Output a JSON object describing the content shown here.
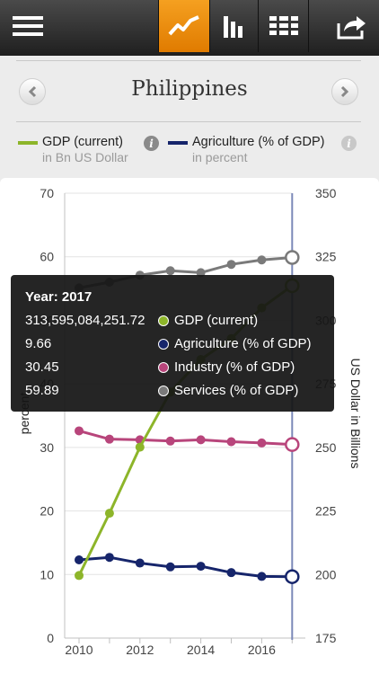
{
  "toolbar": {
    "buttons": [
      {
        "name": "menu",
        "icon": "hamburger-icon",
        "active": false
      },
      {
        "name": "line-chart",
        "icon": "line-chart-icon",
        "active": true
      },
      {
        "name": "bar-chart",
        "icon": "bar-chart-icon",
        "active": false
      },
      {
        "name": "table",
        "icon": "table-grid-icon",
        "active": false
      },
      {
        "name": "share",
        "icon": "share-icon",
        "active": false
      }
    ],
    "active_color": "#f39a16"
  },
  "header": {
    "title": "Philippines",
    "prev_icon": "chevron-left-icon",
    "next_icon": "chevron-right-icon"
  },
  "legend": [
    {
      "label": "GDP (current)",
      "sub": "in Bn US Dollar",
      "color": "#8db52a",
      "info_icon": "info-icon"
    },
    {
      "label": "Agriculture (% of GDP)",
      "sub": "in percent",
      "color": "#16256b",
      "info_icon": "info-icon"
    }
  ],
  "chart_data": {
    "type": "line",
    "x": [
      2010,
      2011,
      2012,
      2013,
      2014,
      2015,
      2016,
      2017
    ],
    "x_ticks": [
      "2010",
      "2012",
      "2014",
      "2016"
    ],
    "left_axis": {
      "label": "percent",
      "ticks": [
        "0",
        "10",
        "20",
        "30",
        "40",
        "50",
        "60",
        "70"
      ],
      "range": [
        0,
        70
      ]
    },
    "right_axis": {
      "label": "US Dollar in Billions",
      "ticks": [
        "175",
        "200",
        "225",
        "250",
        "275",
        "300",
        "325",
        "350"
      ],
      "range": [
        175,
        350
      ]
    },
    "series": [
      {
        "name": "GDP (current)",
        "axis": "right",
        "color": "#8db52a",
        "values": [
          199.6,
          224.1,
          250.1,
          271.8,
          284.6,
          292.8,
          304.9,
          313.6
        ]
      },
      {
        "name": "Agriculture (% of GDP)",
        "axis": "left",
        "color": "#16256b",
        "values": [
          12.3,
          12.7,
          11.8,
          11.2,
          11.3,
          10.3,
          9.7,
          9.66
        ]
      },
      {
        "name": "Industry (% of GDP)",
        "axis": "left",
        "color": "#b8457b",
        "values": [
          32.6,
          31.3,
          31.2,
          31.0,
          31.2,
          30.9,
          30.7,
          30.45
        ]
      },
      {
        "name": "Services (% of GDP)",
        "axis": "left",
        "color": "#7a7a7a",
        "values": [
          55.1,
          56.0,
          57.1,
          57.8,
          57.5,
          58.8,
          59.5,
          59.89
        ]
      }
    ],
    "highlight_x": 2017
  },
  "tooltip": {
    "year_label": "Year: 2017",
    "rows": [
      {
        "value": "313,595,084,251.72",
        "name": "GDP (current)",
        "color": "#8db52a"
      },
      {
        "value": "9.66",
        "name": "Agriculture (% of GDP)",
        "color": "#16256b"
      },
      {
        "value": "30.45",
        "name": "Industry (% of GDP)",
        "color": "#b8457b"
      },
      {
        "value": "59.89",
        "name": "Services (% of GDP)",
        "color": "#7a7a7a"
      }
    ]
  }
}
